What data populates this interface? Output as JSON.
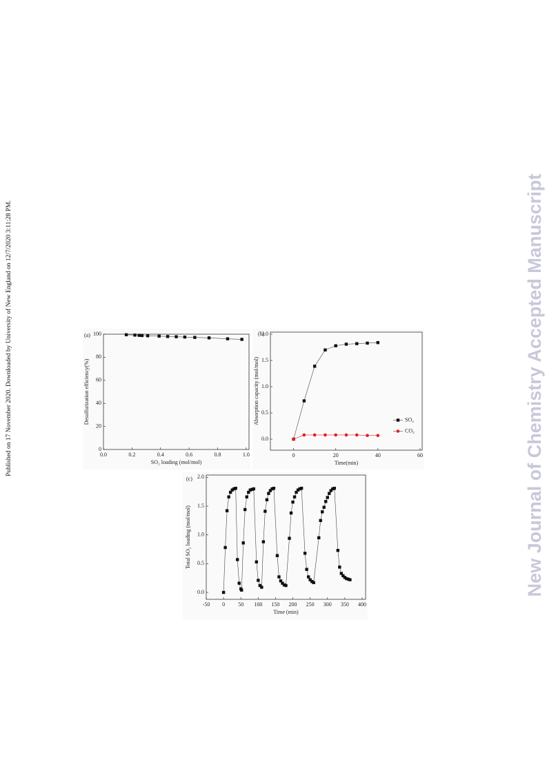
{
  "side_note": "Published on 17 November 2020. Downloaded by University of New England on 12/7/2020 3:11:28 PM.",
  "watermark": "New Journal of Chemistry Accepted Manuscript",
  "chart_data": [
    {
      "type": "line",
      "panel_label": "(a)",
      "x_label": "SO₂ loading (mol/mol)",
      "y_label": "Desulfurization efficiency(%)",
      "x": [
        0.16,
        0.22,
        0.25,
        0.27,
        0.31,
        0.39,
        0.45,
        0.51,
        0.57,
        0.64,
        0.74,
        0.87,
        0.97
      ],
      "series": [
        {
          "color": "#111111",
          "marker": "square",
          "values": [
            99.5,
            99.2,
            99,
            98.8,
            98.6,
            98.3,
            98,
            97.8,
            97.5,
            97.2,
            96.8,
            96,
            95.5
          ]
        }
      ],
      "xlim": [
        0,
        1.02
      ],
      "ylim": [
        0,
        100
      ],
      "xticks": [
        {
          "value": 0,
          "label": "0.0"
        },
        {
          "value": 0.2,
          "label": "0.2"
        },
        {
          "value": 0.4,
          "label": "0.4"
        },
        {
          "value": 0.6,
          "label": "0.6"
        },
        {
          "value": 0.8,
          "label": "0.8"
        },
        {
          "value": 1,
          "label": "1.0"
        }
      ],
      "yticks": [
        0,
        20,
        40,
        60,
        80,
        100
      ]
    },
    {
      "type": "line",
      "panel_label": "(b)",
      "x_label": "Time(min)",
      "y_label": "Absorption capacity (mol/mol)",
      "x": [
        0,
        5,
        10,
        15,
        20,
        25,
        30,
        35,
        40
      ],
      "series": [
        {
          "name": "SO₂",
          "color": "#111111",
          "marker": "square",
          "values": [
            0,
            0.73,
            1.39,
            1.7,
            1.78,
            1.81,
            1.82,
            1.83,
            1.84
          ]
        },
        {
          "name": "CO₂",
          "color": "#e02020",
          "marker": "circle",
          "values": [
            0,
            0.08,
            0.08,
            0.08,
            0.08,
            0.08,
            0.08,
            0.07,
            0.07
          ]
        }
      ],
      "legend": "right",
      "xlim": [
        -11,
        61
      ],
      "ylim": [
        -0.21,
        2.04
      ],
      "xticks": [
        0,
        20,
        40,
        60
      ],
      "yticks": [
        {
          "value": 0,
          "label": "0.0"
        },
        {
          "value": 0.5,
          "label": "0.5"
        },
        {
          "value": 1,
          "label": "1.0"
        },
        {
          "value": 1.5,
          "label": "1.5"
        },
        {
          "value": 2,
          "label": "2.0"
        }
      ]
    },
    {
      "type": "line",
      "panel_label": "(c)",
      "x_label": "Time (min)",
      "y_label": "Total SO₂ loading (mol/mol)",
      "x": [
        0,
        5,
        10,
        15,
        20,
        25,
        30,
        35,
        40,
        45,
        50,
        52,
        57,
        62,
        67,
        72,
        77,
        82,
        87,
        95,
        100,
        105,
        110,
        115,
        120,
        125,
        130,
        135,
        140,
        145,
        155,
        160,
        165,
        170,
        175,
        180,
        190,
        195,
        200,
        205,
        210,
        215,
        220,
        225,
        235,
        240,
        245,
        250,
        255,
        260,
        275,
        280,
        285,
        290,
        295,
        300,
        305,
        310,
        315,
        320,
        330,
        335,
        340,
        345,
        350,
        355,
        360,
        365
      ],
      "series": [
        {
          "color": "#111111",
          "marker": "square",
          "values": [
            0,
            0.78,
            1.42,
            1.66,
            1.74,
            1.78,
            1.8,
            1.81,
            0.57,
            0.16,
            0.06,
            0.04,
            0.86,
            1.44,
            1.66,
            1.74,
            1.78,
            1.79,
            1.8,
            0.53,
            0.21,
            0.12,
            0.09,
            0.88,
            1.41,
            1.61,
            1.72,
            1.77,
            1.8,
            1.81,
            0.64,
            0.27,
            0.2,
            0.16,
            0.13,
            0.12,
            0.94,
            1.38,
            1.57,
            1.66,
            1.74,
            1.78,
            1.8,
            1.81,
            0.68,
            0.4,
            0.27,
            0.22,
            0.19,
            0.17,
            0.95,
            1.25,
            1.4,
            1.48,
            1.58,
            1.65,
            1.72,
            1.77,
            1.8,
            1.81,
            0.73,
            0.44,
            0.33,
            0.29,
            0.26,
            0.24,
            0.23,
            0.22
          ]
        }
      ],
      "xlim": [
        -50,
        410
      ],
      "ylim": [
        -0.12,
        2.04
      ],
      "xticks": [
        -50,
        0,
        50,
        100,
        150,
        200,
        250,
        300,
        350,
        400
      ],
      "yticks": [
        {
          "value": 0,
          "label": "0.0"
        },
        {
          "value": 0.5,
          "label": "0.5"
        },
        {
          "value": 1,
          "label": "1.0"
        },
        {
          "value": 1.5,
          "label": "1.5"
        },
        {
          "value": 2,
          "label": "2.0"
        }
      ]
    }
  ]
}
